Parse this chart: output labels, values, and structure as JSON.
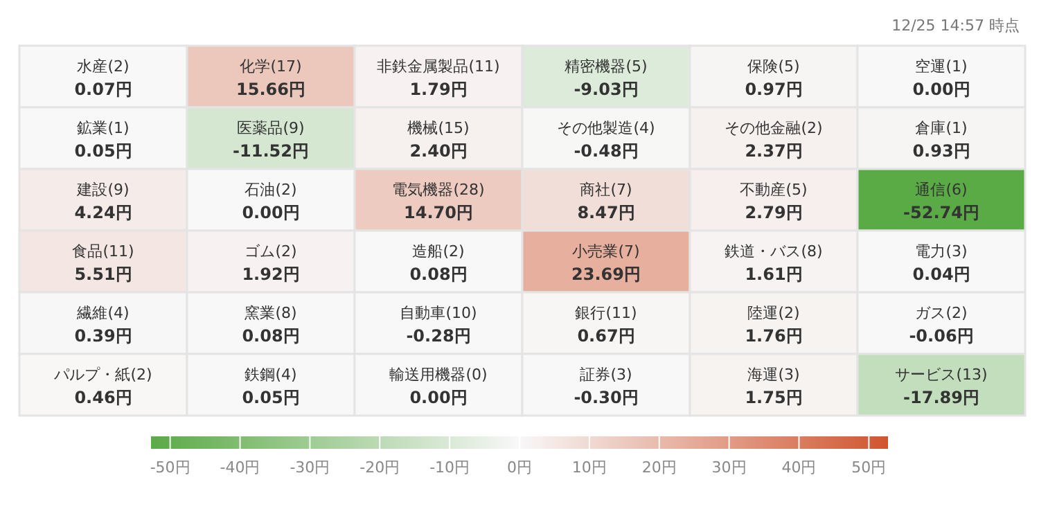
{
  "chart_data": {
    "type": "heatmap",
    "annotations": [
      "12/25 14:57 時点"
    ],
    "categories": [
      null,
      null,
      null,
      null,
      null,
      null
    ],
    "y_categories": [
      null,
      null,
      null,
      null,
      null,
      null
    ],
    "cells": [
      [
        0.07,
        15.66,
        1.79,
        -9.03,
        0.97,
        0.0
      ],
      [
        0.05,
        -11.52,
        2.4,
        -0.48,
        2.37,
        0.93
      ],
      [
        4.24,
        0.0,
        14.7,
        8.47,
        2.79,
        -52.74
      ],
      [
        5.51,
        1.92,
        0.08,
        23.69,
        1.61,
        0.04
      ],
      [
        0.39,
        0.08,
        -0.28,
        0.67,
        1.76,
        -0.06
      ],
      [
        0.46,
        0.05,
        0.0,
        -0.3,
        1.75,
        -17.89
      ]
    ],
    "cell_labels": [
      [
        "水産(2)\n0.07円",
        "化学(17)\n15.66円",
        "非鉄金属製品(11)\n1.79円",
        "精密機器(5)\n-9.03円",
        "保険(5)\n0.97円",
        "空運(1)\n0.00円"
      ],
      [
        "鉱業(1)\n0.05円",
        "医薬品(9)\n-11.52円",
        "機械(15)\n2.40円",
        "その他製造(4)\n-0.48円",
        "その他金融(2)\n2.37円",
        "倉庫(1)\n0.93円"
      ],
      [
        "建設(9)\n4.24円",
        "石油(2)\n0.00円",
        "電気機器(28)\n14.70円",
        "商社(7)\n8.47円",
        "不動産(5)\n2.79円",
        "通信(6)\n-52.74円"
      ],
      [
        "食品(11)\n5.51円",
        "ゴム(2)\n1.92円",
        "造船(2)\n0.08円",
        "小売業(7)\n23.69円",
        "鉄道・バス(8)\n1.61円",
        "電力(3)\n0.04円"
      ],
      [
        "繊維(4)\n0.39円",
        "窯業(8)\n0.08円",
        "自動車(10)\n-0.28円",
        "銀行(11)\n0.67円",
        "陸運(2)\n1.76円",
        "ガス(2)\n-0.06円"
      ],
      [
        "パルプ・紙(2)\n0.46円",
        "鉄鋼(4)\n0.05円",
        "輸送用機器(0)\n0.00円",
        "証券(3)\n-0.30円",
        "海運(3)\n1.75円",
        "サービス(13)\n-17.89円"
      ]
    ],
    "clim": [
      -52.74,
      52.74
    ],
    "cticks": [
      {
        "value": -50,
        "label": "-50円"
      },
      {
        "value": -40,
        "label": "-40円"
      },
      {
        "value": -30,
        "label": "-30円"
      },
      {
        "value": -20,
        "label": "-20円"
      },
      {
        "value": -10,
        "label": "-10円"
      },
      {
        "value": 0,
        "label": "0円"
      },
      {
        "value": 10,
        "label": "10円"
      },
      {
        "value": 20,
        "label": "20円"
      },
      {
        "value": 30,
        "label": "30円"
      },
      {
        "value": 40,
        "label": "40円"
      },
      {
        "value": 50,
        "label": "50円"
      }
    ],
    "colors": [
      "#5aaa46",
      "#f8f8f8",
      "#d0552f"
    ]
  }
}
